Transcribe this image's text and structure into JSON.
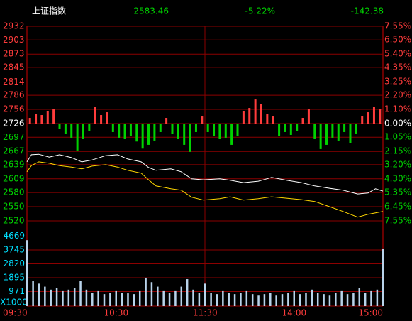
{
  "chart_data": [
    {
      "type": "line",
      "title": "上证指数",
      "last": "2583.46",
      "change_pct": "-5.22%",
      "change": "-142.38",
      "xlim": [
        0,
        240
      ],
      "xticks": [
        {
          "value": 0,
          "label": "09:30"
        },
        {
          "value": 60,
          "label": "10:30"
        },
        {
          "value": 120,
          "label": "11:30"
        },
        {
          "value": 180,
          "label": "14:00"
        },
        {
          "value": 240,
          "label": "15:00"
        }
      ],
      "ylim": [
        2520,
        2932
      ],
      "yticks": [
        2932,
        2903,
        2873,
        2845,
        2814,
        2786,
        2756,
        2726,
        2697,
        2667,
        2639,
        2609,
        2580,
        2550,
        2520
      ],
      "y2lim": [
        -7.55,
        7.55
      ],
      "y2ticks": [
        {
          "value": 7.55,
          "label": "7.55%"
        },
        {
          "value": 6.5,
          "label": "6.50%"
        },
        {
          "value": 5.4,
          "label": "5.40%"
        },
        {
          "value": 4.35,
          "label": "4.35%"
        },
        {
          "value": 3.25,
          "label": "3.25%"
        },
        {
          "value": 2.2,
          "label": "2.20%"
        },
        {
          "value": 1.1,
          "label": "1.10%"
        },
        {
          "value": 0,
          "label": "0.00%"
        },
        {
          "value": -1.05,
          "label": "1.05%"
        },
        {
          "value": -2.15,
          "label": "2.15%"
        },
        {
          "value": -3.2,
          "label": "3.20%"
        },
        {
          "value": -4.3,
          "label": "4.30%"
        },
        {
          "value": -5.35,
          "label": "5.35%"
        },
        {
          "value": -6.45,
          "label": "6.45%"
        },
        {
          "value": -7.55,
          "label": "7.55%"
        }
      ],
      "up_color": "#ff3c3c",
      "down_color": "#00d200",
      "flat_color": "#ffffff",
      "grid_color": "#8c0000",
      "series": [
        {
          "color": "#ffffff",
          "x": [
            0,
            3,
            8,
            15,
            22,
            30,
            37,
            44,
            53,
            61,
            68,
            77,
            82,
            87,
            97,
            104,
            111,
            119,
            130,
            137,
            146,
            156,
            165,
            175,
            185,
            194,
            204,
            213,
            223,
            230,
            235,
            240
          ],
          "values": [
            2645,
            2660,
            2661,
            2655,
            2660,
            2654,
            2645,
            2649,
            2658,
            2660,
            2651,
            2645,
            2633,
            2627,
            2630,
            2624,
            2609,
            2607,
            2609,
            2606,
            2601,
            2604,
            2612,
            2606,
            2601,
            2594,
            2589,
            2585,
            2577,
            2579,
            2588,
            2583
          ]
        },
        {
          "color": "#ffd700",
          "x": [
            0,
            3,
            8,
            15,
            22,
            30,
            37,
            44,
            53,
            61,
            68,
            77,
            82,
            87,
            97,
            104,
            111,
            119,
            130,
            137,
            146,
            156,
            165,
            175,
            185,
            194,
            204,
            213,
            223,
            230,
            235,
            240
          ],
          "values": [
            2624,
            2637,
            2645,
            2642,
            2637,
            2634,
            2630,
            2636,
            2639,
            2634,
            2627,
            2621,
            2607,
            2594,
            2588,
            2585,
            2570,
            2564,
            2567,
            2571,
            2564,
            2567,
            2571,
            2568,
            2565,
            2561,
            2550,
            2540,
            2528,
            2534,
            2537,
            2540
          ]
        }
      ],
      "bars": {
        "baseline": 2726,
        "x": [
          2,
          6,
          10,
          14,
          18,
          22,
          26,
          30,
          34,
          38,
          42,
          46,
          50,
          54,
          58,
          62,
          66,
          70,
          74,
          78,
          82,
          86,
          90,
          94,
          98,
          102,
          106,
          110,
          114,
          118,
          122,
          126,
          130,
          134,
          138,
          142,
          146,
          150,
          154,
          158,
          162,
          166,
          170,
          174,
          178,
          182,
          186,
          190,
          194,
          198,
          202,
          206,
          210,
          214,
          218,
          222,
          226,
          230,
          234,
          238
        ],
        "values": [
          2738,
          2747,
          2744,
          2753,
          2756,
          2714,
          2704,
          2696,
          2669,
          2693,
          2711,
          2762,
          2744,
          2750,
          2708,
          2696,
          2693,
          2699,
          2688,
          2673,
          2681,
          2690,
          2708,
          2738,
          2704,
          2693,
          2681,
          2666,
          2708,
          2741,
          2708,
          2699,
          2693,
          2696,
          2681,
          2699,
          2753,
          2759,
          2777,
          2768,
          2747,
          2741,
          2699,
          2708,
          2702,
          2711,
          2738,
          2756,
          2693,
          2672,
          2681,
          2696,
          2690,
          2708,
          2684,
          2705,
          2741,
          2750,
          2762,
          2756
        ]
      }
    },
    {
      "type": "bar",
      "unit": "X1000",
      "color": "#b9d3ea",
      "tick_color": "#00e0ff",
      "xlim": [
        0,
        240
      ],
      "ylim": [
        0,
        5690
      ],
      "yticks": [
        4669,
        3745,
        2820,
        1895,
        971
      ],
      "x": [
        0,
        4,
        8,
        12,
        16,
        20,
        24,
        28,
        32,
        36,
        40,
        44,
        48,
        52,
        56,
        60,
        64,
        68,
        72,
        76,
        80,
        84,
        88,
        92,
        96,
        100,
        104,
        108,
        112,
        116,
        120,
        124,
        128,
        132,
        136,
        140,
        144,
        148,
        152,
        156,
        160,
        164,
        168,
        172,
        176,
        180,
        184,
        188,
        192,
        196,
        200,
        204,
        208,
        212,
        216,
        220,
        224,
        228,
        232,
        236,
        240
      ],
      "values": [
        4400,
        1700,
        1500,
        1300,
        1100,
        1200,
        1000,
        1100,
        1200,
        1700,
        1100,
        900,
        1000,
        800,
        900,
        1000,
        900,
        850,
        800,
        1000,
        1900,
        1600,
        1300,
        1000,
        900,
        1000,
        1300,
        1800,
        1100,
        900,
        1500,
        900,
        800,
        1000,
        900,
        800,
        900,
        1000,
        800,
        700,
        800,
        900,
        700,
        800,
        900,
        1000,
        800,
        900,
        1100,
        900,
        800,
        700,
        900,
        1000,
        800,
        900,
        1200,
        900,
        1000,
        1100,
        3800
      ]
    }
  ]
}
